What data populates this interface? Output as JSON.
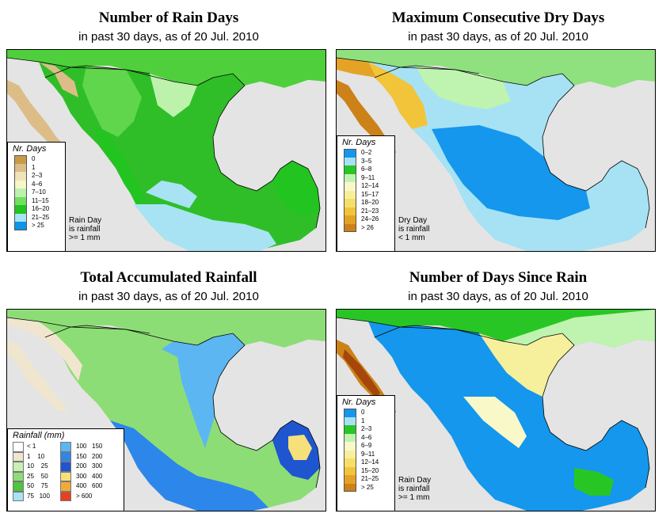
{
  "colors": {
    "ocean": "#e4e4e4",
    "coast": "#000000"
  },
  "panels": [
    {
      "id": "rain_days",
      "title": "Number of Rain Days",
      "subtitle": "in past 30 days, as of  20 Jul. 2010",
      "legend_title": "Nr. Days",
      "legend_items": [
        {
          "label": "0",
          "color": "#c99a4a"
        },
        {
          "label": "1",
          "color": "#dcbd88"
        },
        {
          "label": "2–3",
          "color": "#efe3b8"
        },
        {
          "label": "4–6",
          "color": "#f7f7c8"
        },
        {
          "label": "7–10",
          "color": "#bdf2ad"
        },
        {
          "label": "11–15",
          "color": "#6fe15d"
        },
        {
          "label": "16–20",
          "color": "#22c41f"
        },
        {
          "label": "21–25",
          "color": "#a8e3f4"
        },
        {
          "label": "> 25",
          "color": "#0f94e8"
        }
      ],
      "note": "Rain Day\nis rainfall\n>= 1 mm"
    },
    {
      "id": "dry_days",
      "title": "Maximum Consecutive Dry Days",
      "subtitle": "in past 30 days, as of  20 Jul. 2010",
      "legend_title": "Nr. Days",
      "legend_items": [
        {
          "label": "0–2",
          "color": "#1497ec"
        },
        {
          "label": "3–5",
          "color": "#a6e2f4"
        },
        {
          "label": "6–8",
          "color": "#28c624"
        },
        {
          "label": "9–11",
          "color": "#bff3b0"
        },
        {
          "label": "12–14",
          "color": "#f8f8c9"
        },
        {
          "label": "15–17",
          "color": "#f6ef9c"
        },
        {
          "label": "18–20",
          "color": "#f5df68"
        },
        {
          "label": "21–23",
          "color": "#f2c43a"
        },
        {
          "label": "24–26",
          "color": "#e5a326"
        },
        {
          "label": "> 26",
          "color": "#cc8218"
        }
      ],
      "note": "Dry Day\nis rainfall\n< 1 mm"
    },
    {
      "id": "rainfall",
      "title": "Total Accumulated Rainfall",
      "subtitle": "in past 30 days, as of  20 Jul. 2010",
      "legend_title": "Rainfall (mm)",
      "legend_left": [
        {
          "label": "< 1",
          "color": "#ffffff"
        },
        {
          "label": "1    10",
          "color": "#f0e6cf"
        },
        {
          "label": "10    25",
          "color": "#c6f0b4"
        },
        {
          "label": "25    50",
          "color": "#8ddd76"
        },
        {
          "label": "50    75",
          "color": "#4cc63d"
        },
        {
          "label": "75   100",
          "color": "#a9e2f5"
        }
      ],
      "legend_right": [
        {
          "label": "100   150",
          "color": "#5cb6f2"
        },
        {
          "label": "150   200",
          "color": "#2d86ea"
        },
        {
          "label": "200   300",
          "color": "#1f55cf"
        },
        {
          "label": "300   400",
          "color": "#f6e07a"
        },
        {
          "label": "400   600",
          "color": "#f2a93a"
        },
        {
          "label": "> 600",
          "color": "#e8401f"
        }
      ]
    },
    {
      "id": "since_rain",
      "title": "Number of Days Since Rain",
      "subtitle": "in past 30 days, as of  20 Jul. 2010",
      "legend_title": "Nr. Days",
      "legend_items": [
        {
          "label": "0",
          "color": "#1497ec"
        },
        {
          "label": "1",
          "color": "#a6e2f4"
        },
        {
          "label": "2–3",
          "color": "#28c624"
        },
        {
          "label": "4–6",
          "color": "#bff3b0"
        },
        {
          "label": "6–9",
          "color": "#f8f8c9"
        },
        {
          "label": "9–11",
          "color": "#f6ef9c"
        },
        {
          "label": "12–14",
          "color": "#f5df68"
        },
        {
          "label": "15–20",
          "color": "#f2c43a"
        },
        {
          "label": "21–25",
          "color": "#e5a326"
        },
        {
          "label": "> 25",
          "color": "#cc8218"
        }
      ],
      "note": "Rain Day\nis rainfall\n>= 1 mm"
    }
  ]
}
